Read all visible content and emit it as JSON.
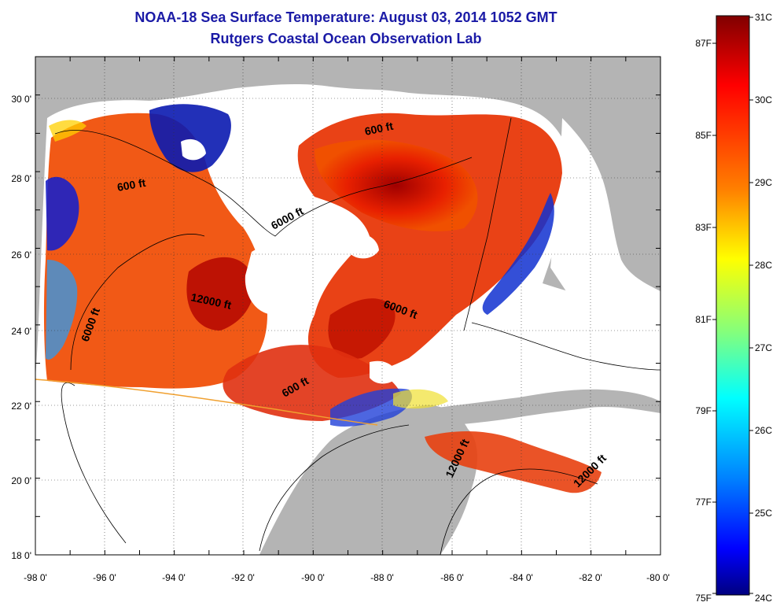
{
  "header": {
    "title_line1": "NOAA-18 Sea Surface Temperature:  August 03, 2014 1052 GMT",
    "title_line2": "Rutgers Coastal Ocean Observation Lab"
  },
  "map": {
    "lon_range": [
      -98,
      -80
    ],
    "lat_range": [
      18,
      31
    ],
    "grid": true,
    "land_color": "#b4b4b4",
    "nodata_color": "#ffffff",
    "x_ticks": [
      "-98 0'",
      "-96 0'",
      "-94 0'",
      "-92 0'",
      "-90 0'",
      "-88 0'",
      "-86 0'",
      "-84 0'",
      "-82 0'",
      "-80 0'"
    ],
    "y_ticks": [
      "18 0'",
      "20 0'",
      "22 0'",
      "24 0'",
      "26 0'",
      "28 0'",
      "30 0'"
    ],
    "contour_labels": [
      "600 ft",
      "600 ft",
      "6000 ft",
      "12000 ft",
      "6000 ft",
      "6000 ft",
      "600 ft",
      "12000 ft",
      "12000 ft"
    ]
  },
  "colorbar": {
    "celsius_labels": [
      "31C",
      "30C",
      "29C",
      "28C",
      "27C",
      "26C",
      "25C",
      "24C"
    ],
    "fahrenheit_labels": [
      "87F",
      "85F",
      "83F",
      "81F",
      "79F",
      "77F",
      "75F"
    ],
    "colors": [
      "#800000",
      "#ff0000",
      "#ff8000",
      "#ffff00",
      "#80ff80",
      "#00ffff",
      "#0080ff",
      "#0000ff",
      "#000080"
    ]
  }
}
